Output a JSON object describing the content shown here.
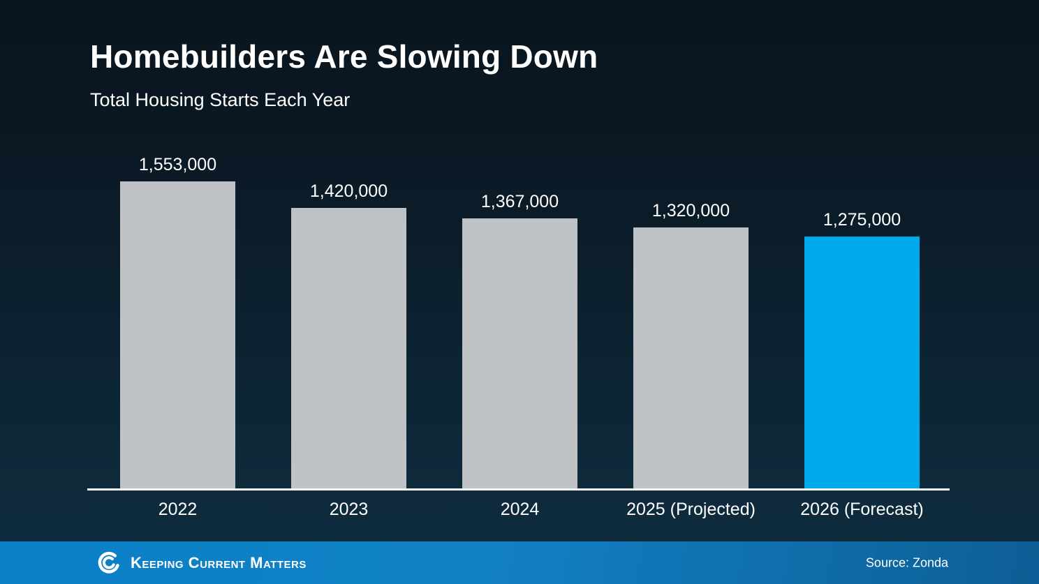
{
  "header": {
    "title": "Homebuilders Are Slowing Down",
    "subtitle": "Total Housing Starts Each Year"
  },
  "chart_data": {
    "type": "bar",
    "title": "Homebuilders Are Slowing Down",
    "subtitle": "Total Housing Starts Each Year",
    "categories": [
      "2022",
      "2023",
      "2024",
      "2025 (Projected)",
      "2026 (Forecast)"
    ],
    "values": [
      1553000,
      1420000,
      1367000,
      1320000,
      1275000
    ],
    "value_labels": [
      "1,553,000",
      "1,420,000",
      "1,367,000",
      "1,320,000",
      "1,275,000"
    ],
    "bar_colors": [
      "#bfc3c5",
      "#bfc3c5",
      "#bfc3c5",
      "#bfc3c5",
      "#00a9ea"
    ],
    "highlight_index": 4,
    "xlabel": "",
    "ylabel": "",
    "ylim": [
      0,
      1553000
    ],
    "grid": false,
    "legend": "none"
  },
  "footer": {
    "brand": "Keeping Current Matters",
    "source": "Source: Zonda"
  },
  "colors": {
    "bar_gray": "#bfc3c5",
    "bar_blue": "#00a9ea",
    "background_top": "#0a141d",
    "background_bottom": "#0e2d40",
    "footer_left": "#0a80c6",
    "footer_right": "#0d5e95",
    "axis_line": "#f2f5f6"
  }
}
